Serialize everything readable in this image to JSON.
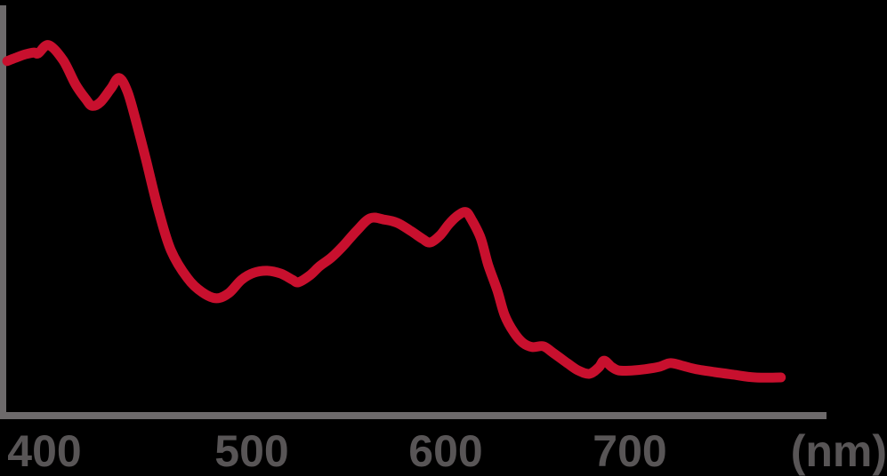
{
  "chart_data": {
    "type": "line",
    "description": "Spectral curve plotted against wavelength in nanometres; no y-axis labels shown",
    "grid": false,
    "legend": null,
    "x_axis": {
      "tick_labels": [
        "400",
        "500",
        "600",
        "700"
      ],
      "tick_values_nm": [
        400,
        500,
        600,
        700
      ],
      "unit_label": "(nm)",
      "range_nm": [
        382,
        782
      ]
    },
    "y_axis": {
      "tick_labels": [],
      "range_relative": [
        0,
        1
      ]
    },
    "colors": {
      "line": "#c8102e",
      "axis": "#6d6a6b",
      "labels": "#585556",
      "background": "#000000"
    },
    "series": [
      {
        "name": "spectral-curve",
        "points_nm_value": [
          [
            382,
            0.864
          ],
          [
            386,
            0.872
          ],
          [
            391,
            0.881
          ],
          [
            395,
            0.885
          ],
          [
            397,
            0.883
          ],
          [
            402,
            0.903
          ],
          [
            409,
            0.866
          ],
          [
            415,
            0.807
          ],
          [
            420,
            0.771
          ],
          [
            423,
            0.755
          ],
          [
            427,
            0.764
          ],
          [
            432,
            0.797
          ],
          [
            436,
            0.823
          ],
          [
            440,
            0.79
          ],
          [
            444,
            0.721
          ],
          [
            449,
            0.623
          ],
          [
            455,
            0.5
          ],
          [
            461,
            0.403
          ],
          [
            469,
            0.335
          ],
          [
            476,
            0.301
          ],
          [
            483,
            0.286
          ],
          [
            489,
            0.299
          ],
          [
            495,
            0.331
          ],
          [
            501,
            0.348
          ],
          [
            508,
            0.353
          ],
          [
            515,
            0.346
          ],
          [
            521,
            0.331
          ],
          [
            524,
            0.325
          ],
          [
            530,
            0.342
          ],
          [
            535,
            0.364
          ],
          [
            541,
            0.385
          ],
          [
            547,
            0.413
          ],
          [
            554,
            0.45
          ],
          [
            561,
            0.481
          ],
          [
            568,
            0.478
          ],
          [
            575,
            0.47
          ],
          [
            582,
            0.45
          ],
          [
            588,
            0.431
          ],
          [
            592,
            0.422
          ],
          [
            597,
            0.439
          ],
          [
            602,
            0.468
          ],
          [
            607,
            0.489
          ],
          [
            611,
            0.496
          ],
          [
            614,
            0.478
          ],
          [
            619,
            0.433
          ],
          [
            623,
            0.368
          ],
          [
            628,
            0.305
          ],
          [
            632,
            0.245
          ],
          [
            637,
            0.203
          ],
          [
            642,
            0.177
          ],
          [
            647,
            0.167
          ],
          [
            653,
            0.169
          ],
          [
            658,
            0.154
          ],
          [
            666,
            0.128
          ],
          [
            672,
            0.11
          ],
          [
            678,
            0.102
          ],
          [
            683,
            0.117
          ],
          [
            686,
            0.134
          ],
          [
            690,
            0.119
          ],
          [
            694,
            0.11
          ],
          [
            701,
            0.11
          ],
          [
            708,
            0.113
          ],
          [
            716,
            0.119
          ],
          [
            722,
            0.128
          ],
          [
            729,
            0.121
          ],
          [
            736,
            0.113
          ],
          [
            746,
            0.106
          ],
          [
            756,
            0.1
          ],
          [
            768,
            0.093
          ],
          [
            782,
            0.093
          ]
        ]
      }
    ]
  }
}
